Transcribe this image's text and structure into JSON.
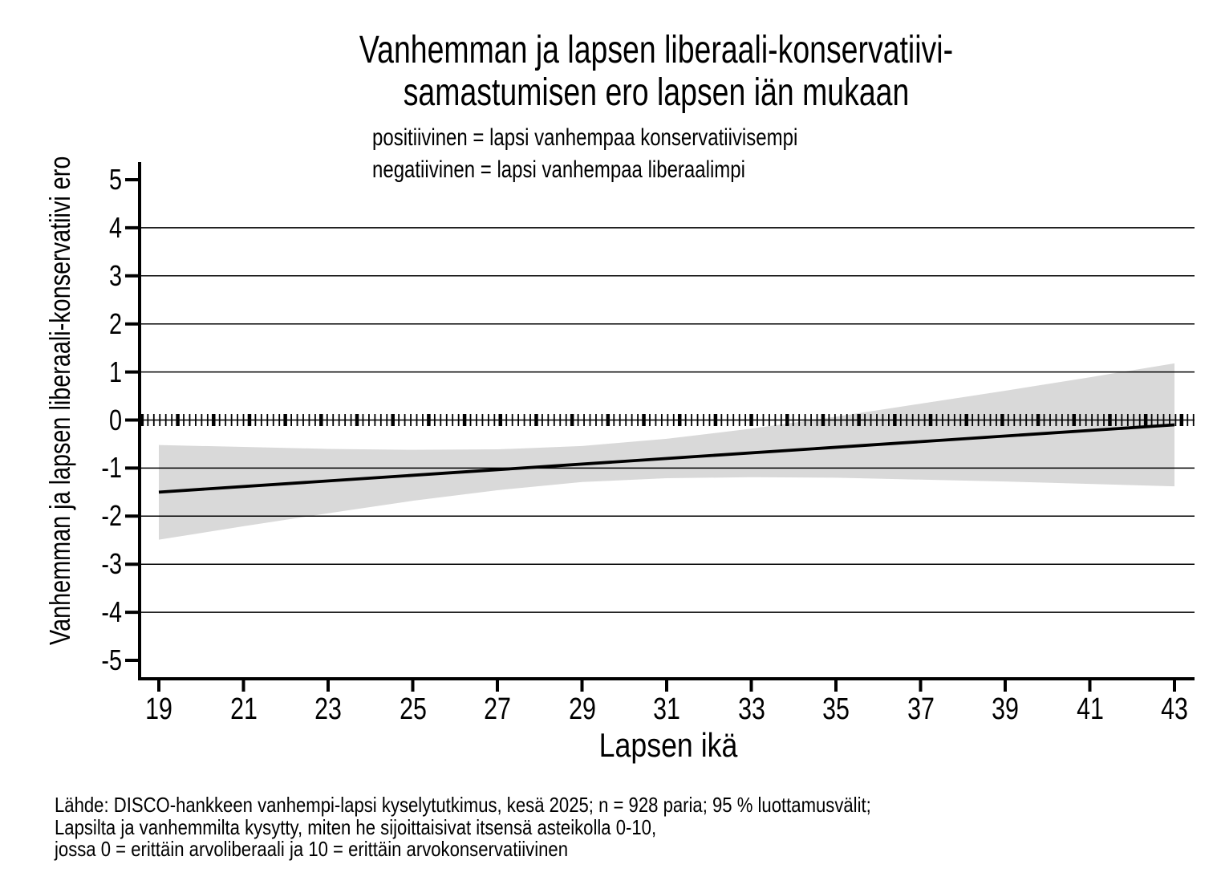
{
  "page": {
    "background": "#ffffff"
  },
  "chart_data": {
    "type": "line",
    "title_lines": [
      "Vanhemman ja lapsen liberaali-konservatiivi-",
      "samastumisen ero lapsen iän mukaan"
    ],
    "subtitle_lines": [
      "positiivinen = lapsi vanhempaa konservatiivisempi",
      "negatiivinen = lapsi vanhempaa liberaalimpi"
    ],
    "xlabel": "Lapsen ikä",
    "ylabel": "Vanhemman ja lapsen liberaali-konservatiivi ero",
    "x_ticks": [
      19,
      21,
      23,
      25,
      27,
      29,
      31,
      33,
      35,
      37,
      39,
      41,
      43
    ],
    "y_ticks": [
      5,
      4,
      3,
      2,
      1,
      0,
      -1,
      -2,
      -3,
      -4,
      -5
    ],
    "gridline_values": [
      4,
      3,
      2,
      1,
      0,
      -1,
      -2,
      -3,
      -4
    ],
    "xlim": [
      18.55,
      43.47
    ],
    "ylim": [
      -5.4,
      5.37
    ],
    "line": {
      "x": [
        19,
        43
      ],
      "y": [
        -1.5,
        -0.1
      ]
    },
    "ci_band": {
      "x": [
        19,
        21,
        23,
        25,
        27,
        29,
        31,
        33,
        35,
        37,
        39,
        41,
        43
      ],
      "upper": [
        -0.52,
        -0.56,
        -0.6,
        -0.62,
        -0.61,
        -0.54,
        -0.39,
        -0.18,
        0.07,
        0.34,
        0.61,
        0.89,
        1.18
      ],
      "lower": [
        -2.49,
        -2.21,
        -1.94,
        -1.68,
        -1.46,
        -1.29,
        -1.21,
        -1.19,
        -1.2,
        -1.24,
        -1.28,
        -1.33,
        -1.38
      ]
    },
    "zero_line_rug": {
      "y": 0,
      "x_start": 18.6,
      "x_end": 43.45,
      "tick_count": 177
    },
    "notes_lines": [
      "Lähde: DISCO-hankkeen vanhempi-lapsi kyselytutkimus, kesä 2025; n = 928 paria; 95 % luottamusvälit;",
      "Lapsilta ja vanhemmilta kysytty, miten he sijoittaisivat itsensä asteikolla 0-10,",
      "jossa 0 = erittäin arvoliberaali ja 10 = erittäin arvokonservatiivinen"
    ],
    "colors": {
      "line": "#000000",
      "ci_band": "#d9d9d9",
      "axis": "#000000",
      "grid": "#000000",
      "text": "#000000"
    }
  }
}
